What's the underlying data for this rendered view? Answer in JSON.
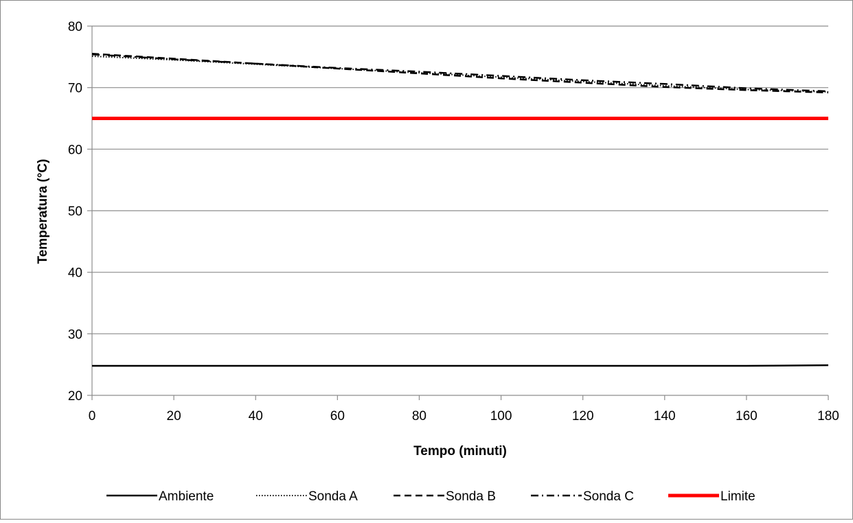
{
  "chart_data": {
    "type": "line",
    "title": "",
    "xlabel": "Tempo (minuti)",
    "ylabel": "Temperatura (°C)",
    "xlim": [
      0,
      180
    ],
    "ylim": [
      20,
      80
    ],
    "xticks": [
      0,
      20,
      40,
      60,
      80,
      100,
      120,
      140,
      160,
      180
    ],
    "yticks": [
      20,
      30,
      40,
      50,
      60,
      70,
      80
    ],
    "grid": "horizontal",
    "legend_position": "bottom",
    "x": [
      0,
      20,
      40,
      60,
      80,
      100,
      120,
      140,
      160,
      180
    ],
    "series": [
      {
        "name": "Ambiente",
        "color": "#000000",
        "style": "solid",
        "values": [
          24.8,
          24.8,
          24.8,
          24.8,
          24.8,
          24.8,
          24.8,
          24.8,
          24.8,
          24.9
        ]
      },
      {
        "name": "Sonda A",
        "color": "#000000",
        "style": "dotted",
        "values": [
          75.1,
          74.5,
          73.8,
          73.1,
          72.4,
          71.7,
          71.0,
          70.3,
          69.7,
          69.3
        ]
      },
      {
        "name": "Sonda B",
        "color": "#000000",
        "style": "dashed",
        "values": [
          75.5,
          74.7,
          73.9,
          73.1,
          72.3,
          71.5,
          70.8,
          70.1,
          69.6,
          69.2
        ]
      },
      {
        "name": "Sonda C",
        "color": "#000000",
        "style": "dashdot",
        "values": [
          75.4,
          74.6,
          73.9,
          73.2,
          72.6,
          71.9,
          71.2,
          70.6,
          69.9,
          69.4
        ]
      },
      {
        "name": "Limite",
        "color": "#ff0000",
        "style": "solid-thick",
        "values": [
          65,
          65,
          65,
          65,
          65,
          65,
          65,
          65,
          65,
          65
        ]
      }
    ]
  }
}
